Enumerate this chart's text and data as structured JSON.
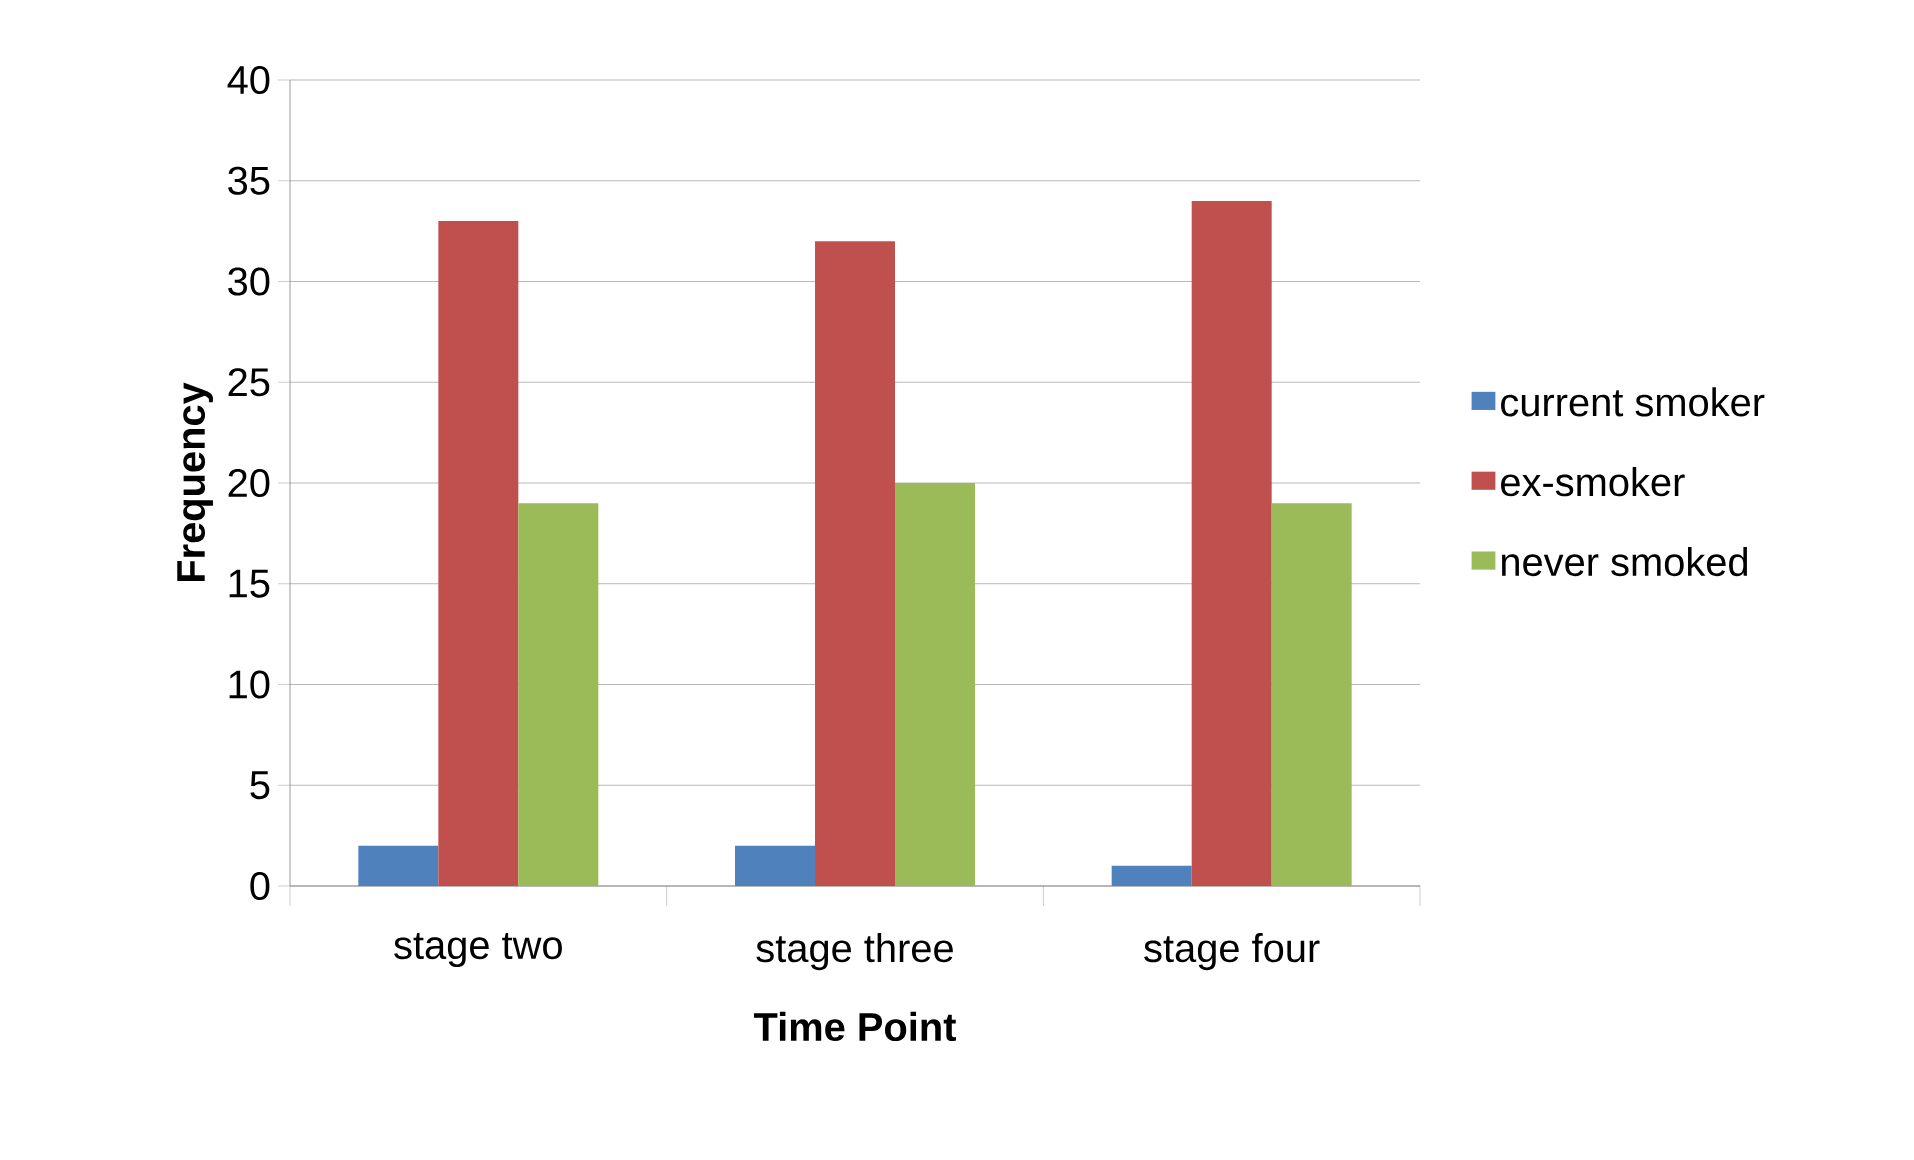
{
  "chart_data": {
    "type": "bar",
    "xlabel": "Time Point",
    "ylabel": "Frequency",
    "categories": [
      "stage two",
      "stage three",
      "stage four"
    ],
    "series": [
      {
        "name": "current smoker",
        "color": "#4f81bd",
        "values": [
          2,
          2,
          1
        ]
      },
      {
        "name": "ex-smoker",
        "color": "#c0504d",
        "values": [
          33,
          32,
          34
        ]
      },
      {
        "name": "never smoked",
        "color": "#9bbb59",
        "values": [
          19,
          20,
          19
        ]
      }
    ],
    "ylim": [
      0,
      40
    ],
    "yticks": [
      0,
      5,
      10,
      15,
      20,
      25,
      30,
      35,
      40
    ],
    "grid": "y",
    "legend": "right"
  }
}
